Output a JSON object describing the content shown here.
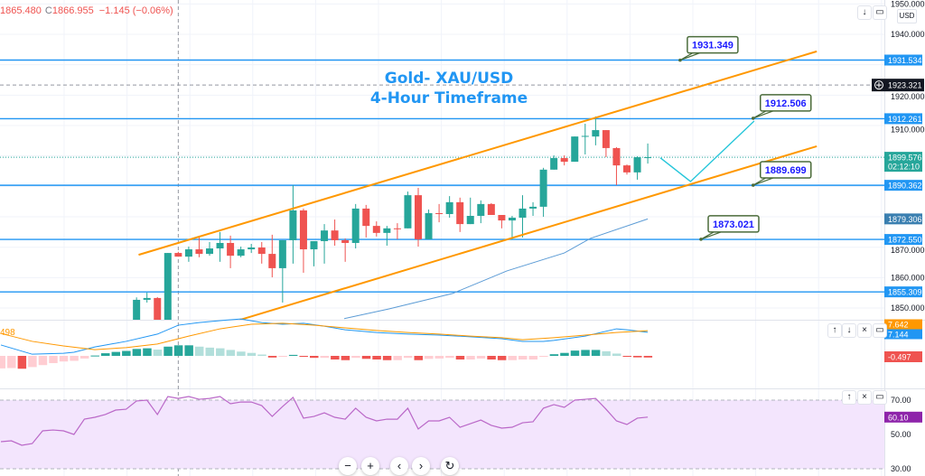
{
  "legend": {
    "low_value": "1865.480",
    "close_label": "C",
    "close_value": "1866.955",
    "change": "−1.145 (−0.06%)"
  },
  "title": {
    "line1": "Gold- XAU/USD",
    "line2": "4-Hour Timeframe"
  },
  "currency": "USD",
  "macd_left_label": "498",
  "pane_buttons": {
    "up": "↑",
    "down": "↓",
    "close": "×",
    "maximize": "▭"
  },
  "nav": {
    "zoom_out": "−",
    "zoom_in": "+",
    "scroll_left": "‹",
    "scroll_right": "›",
    "reset": "↻"
  },
  "colors": {
    "up": "#26a69a",
    "down": "#ef5350",
    "up_light": "#b2dfdb",
    "down_light": "#ffcdd2",
    "level": "#2196f3",
    "channel": "#ff9800",
    "projection": "#26c6da",
    "ma": "#5b9bd5",
    "macd": "#2196f3",
    "signal": "#ff9800",
    "rsi": "#ba68c8",
    "rsi_fill": "#f3e5fd",
    "rsi_badge": "#8e24aa",
    "callout_border": "#4a6b3a",
    "callout_text": "#1a1aff",
    "crosshair_badge": "#131722",
    "ma_badge": "#3a7fb0"
  },
  "chart_data": {
    "type": "candlestick",
    "timeframe": "4H",
    "price_axis": {
      "ticks": [
        "1950.000",
        "1940.000",
        "1920.000",
        "1910.000",
        "1870.000",
        "1860.000",
        "1850.000"
      ],
      "range": [
        1843,
        1952
      ]
    },
    "first_candle_bar": 13,
    "candles": [
      [
        1846,
        1853.5,
        1845,
        1852.7
      ],
      [
        1852.7,
        1855.1,
        1851.8,
        1853.3
      ],
      [
        1853.3,
        1853.6,
        1845,
        1846
      ],
      [
        1846,
        1868.1,
        1845,
        1868.1
      ],
      [
        1868.1,
        1868.5,
        1866.9,
        1866.9
      ],
      [
        1866.9,
        1870.2,
        1865.2,
        1869.3
      ],
      [
        1869.3,
        1873.5,
        1866.7,
        1867.8
      ],
      [
        1867.8,
        1871.7,
        1867.2,
        1869.6
      ],
      [
        1869.6,
        1875.0,
        1865.2,
        1871.4
      ],
      [
        1871.4,
        1873.8,
        1863.1,
        1867.2
      ],
      [
        1867.2,
        1870.2,
        1866.7,
        1869.3
      ],
      [
        1869.3,
        1871.1,
        1868.1,
        1869.9
      ],
      [
        1869.9,
        1871.7,
        1864.6,
        1867.8
      ],
      [
        1867.8,
        1874.1,
        1860.1,
        1863.1
      ],
      [
        1863.1,
        1872.3,
        1851.8,
        1872.3
      ],
      [
        1872.3,
        1890.4,
        1864.6,
        1882.1
      ],
      [
        1882.1,
        1882.7,
        1861.6,
        1869.3
      ],
      [
        1869.3,
        1872.0,
        1863.7,
        1872.0
      ],
      [
        1872.0,
        1877.6,
        1864.6,
        1875.5
      ],
      [
        1875.5,
        1879.1,
        1870.5,
        1872.3
      ],
      [
        1872.3,
        1872.9,
        1865.2,
        1871.4
      ],
      [
        1871.4,
        1884.2,
        1869.6,
        1882.7
      ],
      [
        1882.7,
        1883.9,
        1873.2,
        1877.0
      ],
      [
        1877.0,
        1878.5,
        1873.5,
        1874.7
      ],
      [
        1874.7,
        1877.0,
        1870.5,
        1876.2
      ],
      [
        1876.2,
        1877.9,
        1872.6,
        1875.9
      ],
      [
        1876.2,
        1888.3,
        1876.2,
        1887.1
      ],
      [
        1887.1,
        1889.5,
        1870.2,
        1872.6
      ],
      [
        1872.6,
        1882.4,
        1872.6,
        1881.2
      ],
      [
        1881.2,
        1884.2,
        1878.2,
        1880.9
      ],
      [
        1880.9,
        1886.8,
        1879.7,
        1884.8
      ],
      [
        1884.8,
        1886.3,
        1875.0,
        1877.6
      ],
      [
        1877.6,
        1886.3,
        1877.6,
        1880.3
      ],
      [
        1880.3,
        1885.4,
        1877.9,
        1884.2
      ],
      [
        1884.2,
        1884.5,
        1880.6,
        1880.6
      ],
      [
        1880.6,
        1880.6,
        1876.2,
        1878.8
      ],
      [
        1878.8,
        1880.3,
        1872.6,
        1879.7
      ],
      [
        1879.7,
        1887.1,
        1873.2,
        1882.7
      ],
      [
        1882.7,
        1884.8,
        1880.3,
        1883.3
      ],
      [
        1883.3,
        1896.1,
        1880.0,
        1895.5
      ],
      [
        1895.5,
        1900.2,
        1895.5,
        1899.3
      ],
      [
        1899.3,
        1900.2,
        1896.9,
        1898.1
      ],
      [
        1898.1,
        1906.4,
        1898.1,
        1906.4
      ],
      [
        1906.4,
        1910.6,
        1900.5,
        1906.6
      ],
      [
        1906.4,
        1913.0,
        1903.5,
        1908.5
      ],
      [
        1908.5,
        1908.5,
        1899.6,
        1902.6
      ],
      [
        1902.6,
        1902.9,
        1890.4,
        1896.9
      ],
      [
        1896.9,
        1897.2,
        1893.9,
        1894.6
      ],
      [
        1894.6,
        1899.9,
        1892.2,
        1899.6
      ],
      [
        1899.6,
        1904.1,
        1897.5,
        1899.6
      ]
    ],
    "levels": [
      {
        "price": 1931.534,
        "label": "1931.534"
      },
      {
        "price": 1912.261,
        "label": "1912.261"
      },
      {
        "price": 1890.362,
        "label": "1890.362"
      },
      {
        "price": 1872.55,
        "label": "1872.550"
      },
      {
        "price": 1855.309,
        "label": "1855.309"
      }
    ],
    "crosshair": {
      "price": 1923.321,
      "label": "1923.321",
      "bar": 17
    },
    "last_price": {
      "price": 1899.576,
      "label": "1899.576",
      "countdown": "02:12:10"
    },
    "moving_average": {
      "label": "1879.306",
      "points": [
        [
          32.9,
          1846.5
        ],
        [
          37.2,
          1849.7
        ],
        [
          43.3,
          1854.8
        ],
        [
          48.5,
          1862.2
        ],
        [
          54,
          1868.1
        ],
        [
          56.5,
          1872.9
        ],
        [
          62,
          1879.306
        ]
      ]
    },
    "channel": {
      "upper": [
        [
          13.2,
          1867.5
        ],
        [
          78.2,
          1934.4
        ]
      ],
      "lower": [
        [
          22.9,
          1846.1
        ],
        [
          78.2,
          1903.2
        ]
      ]
    },
    "projection": [
      [
        63.2,
        1899.4
      ],
      [
        66.1,
        1891.6
      ],
      [
        72.2,
        1911.5
      ]
    ],
    "callouts": [
      {
        "text": "1931.349",
        "bar": 65.1,
        "price": 1931.5
      },
      {
        "text": "1912.506",
        "bar": 72.1,
        "price": 1912.4
      },
      {
        "text": "1889.699",
        "bar": 72.1,
        "price": 1890.4
      },
      {
        "text": "1873.021",
        "bar": 67.1,
        "price": 1872.6
      }
    ],
    "macd": {
      "histogram": [
        -3.8,
        -3.7,
        -3.9,
        -3.4,
        -2.8,
        -2.2,
        -1.7,
        -1.5,
        -0.8,
        0.1,
        0.8,
        1.2,
        1.5,
        2.1,
        2.3,
        1.9,
        2.8,
        3.2,
        3.2,
        2.8,
        2.5,
        2.3,
        1.8,
        1.3,
        0.9,
        0.4,
        -0.5,
        -0.3,
        0.3,
        -0.3,
        -0.6,
        -0.6,
        -1.1,
        -1.3,
        -0.6,
        -0.9,
        -1.1,
        -1.3,
        -1.3,
        -0.6,
        -1.3,
        -0.9,
        -0.8,
        -0.6,
        -1.1,
        -1.1,
        -0.8,
        -1.1,
        -1.3,
        -1.3,
        -1.1,
        -1.1,
        -0.2,
        0.5,
        0.9,
        1.6,
        1.8,
        1.8,
        1.4,
        0.7,
        -0.2,
        -0.45,
        -0.497
      ],
      "macd_line": [
        [
          0,
          3.3
        ],
        [
          3,
          0.5
        ],
        [
          6,
          0.8
        ],
        [
          7,
          1.1
        ],
        [
          9,
          2.7
        ],
        [
          12,
          4.4
        ],
        [
          15,
          6.6
        ],
        [
          17,
          9.3
        ],
        [
          19,
          10.1
        ],
        [
          21,
          10.7
        ],
        [
          23,
          11.2
        ],
        [
          25,
          10.1
        ],
        [
          27,
          9.6
        ],
        [
          29,
          9.9
        ],
        [
          31,
          9.0
        ],
        [
          33,
          7.9
        ],
        [
          36,
          7.1
        ],
        [
          39,
          6.6
        ],
        [
          42,
          6.3
        ],
        [
          45,
          5.8
        ],
        [
          48,
          5.2
        ],
        [
          50,
          4.4
        ],
        [
          52,
          4.4
        ],
        [
          53,
          4.7
        ],
        [
          56,
          6.0
        ],
        [
          59,
          8.2
        ],
        [
          60,
          7.9
        ],
        [
          62,
          7.144
        ]
      ],
      "signal_line": [
        [
          0,
          6.8
        ],
        [
          3,
          4.4
        ],
        [
          6,
          3.0
        ],
        [
          9,
          1.9
        ],
        [
          12,
          2.5
        ],
        [
          15,
          3.6
        ],
        [
          18,
          6.0
        ],
        [
          21,
          8.2
        ],
        [
          24,
          9.6
        ],
        [
          27,
          9.9
        ],
        [
          30,
          9.3
        ],
        [
          33,
          8.5
        ],
        [
          36,
          7.7
        ],
        [
          39,
          7.1
        ],
        [
          42,
          6.6
        ],
        [
          45,
          6.0
        ],
        [
          48,
          5.5
        ],
        [
          50,
          4.9
        ],
        [
          53,
          5.5
        ],
        [
          56,
          6.3
        ],
        [
          59,
          7.1
        ],
        [
          62,
          7.642
        ]
      ],
      "labels": {
        "signal": "7.642",
        "macd": "7.144",
        "histogram": "-0.497"
      }
    },
    "rsi": {
      "values": [
        45.8,
        46.3,
        43.7,
        44.7,
        52.1,
        52.6,
        52.1,
        50,
        58.9,
        60,
        61.6,
        64.2,
        64.7,
        69.5,
        70,
        61.6,
        72.1,
        71,
        72.1,
        70.5,
        71,
        72.1,
        67.9,
        68.9,
        68.9,
        66.8,
        60.5,
        66.3,
        71.6,
        59.5,
        60.5,
        62.6,
        60,
        58.9,
        65.3,
        60,
        57.9,
        58.9,
        58.9,
        65.3,
        53.2,
        57.9,
        57.9,
        60,
        54.2,
        56.3,
        58.4,
        55.3,
        53.7,
        54.2,
        56.8,
        57.4,
        65.3,
        67.4,
        65.8,
        70,
        70.5,
        71,
        64.7,
        57.9,
        55.8,
        59.5,
        60.1
      ],
      "ticks": [
        "70.00",
        "50.00",
        "30.00"
      ],
      "upper": 70,
      "middle": 50,
      "lower": 30,
      "label": "60.10"
    }
  }
}
